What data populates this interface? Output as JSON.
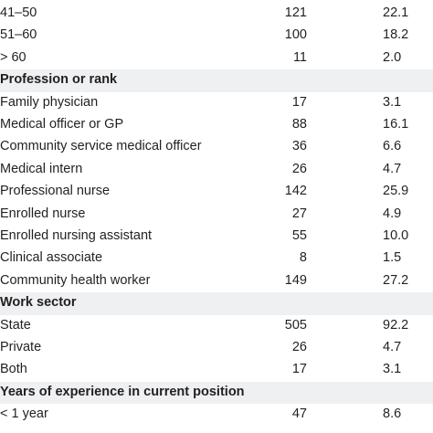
{
  "rows": [
    {
      "type": "data",
      "label": "41–50",
      "n": "121",
      "pct": "22.1"
    },
    {
      "type": "data",
      "label": "51–60",
      "n": "100",
      "pct": "18.2"
    },
    {
      "type": "data",
      "label": "> 60",
      "n": "11",
      "pct": "2.0"
    },
    {
      "type": "section",
      "label": "Profession or rank",
      "n": "",
      "pct": ""
    },
    {
      "type": "data",
      "label": "Family physician",
      "n": "17",
      "pct": "3.1"
    },
    {
      "type": "data",
      "label": "Medical officer or GP",
      "n": "88",
      "pct": "16.1"
    },
    {
      "type": "data",
      "label": "Community service medical officer",
      "n": "36",
      "pct": "6.6"
    },
    {
      "type": "data",
      "label": "Medical intern",
      "n": "26",
      "pct": "4.7"
    },
    {
      "type": "data",
      "label": "Professional nurse",
      "n": "142",
      "pct": "25.9"
    },
    {
      "type": "data",
      "label": "Enrolled nurse",
      "n": "27",
      "pct": "4.9"
    },
    {
      "type": "data",
      "label": "Enrolled nursing assistant",
      "n": "55",
      "pct": "10.0"
    },
    {
      "type": "data",
      "label": "Clinical associate",
      "n": "8",
      "pct": "1.5"
    },
    {
      "type": "data",
      "label": "Community health worker",
      "n": "149",
      "pct": "27.2"
    },
    {
      "type": "section",
      "label": "Work sector",
      "n": "",
      "pct": ""
    },
    {
      "type": "data",
      "label": "State",
      "n": "505",
      "pct": "92.2"
    },
    {
      "type": "data",
      "label": "Private",
      "n": "26",
      "pct": "4.7"
    },
    {
      "type": "data",
      "label": "Both",
      "n": "17",
      "pct": "3.1"
    },
    {
      "type": "section",
      "label": "Years of experience in current position",
      "n": "",
      "pct": ""
    },
    {
      "type": "data",
      "label": "< 1 year",
      "n": "47",
      "pct": "8.6"
    }
  ]
}
